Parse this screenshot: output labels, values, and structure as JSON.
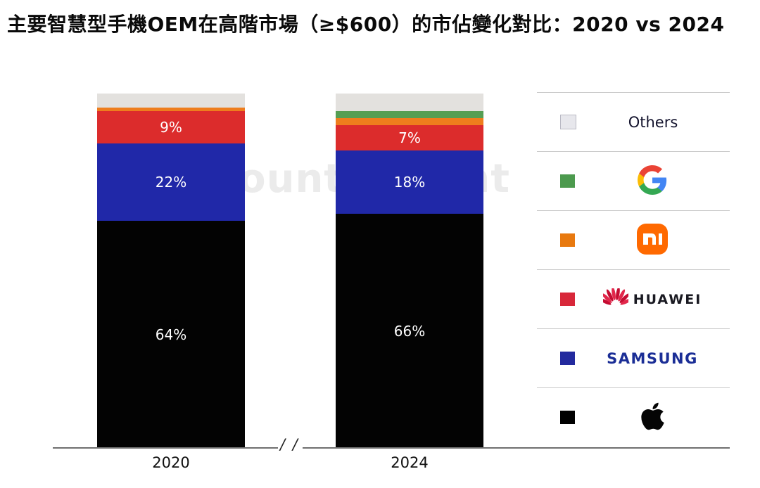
{
  "title": "主要智慧型手機OEM在高階市場（≥$600）的市佔變化對比：2020 vs 2024",
  "watermark": "Counterpoint",
  "axis_break": "/ /",
  "chart_data": {
    "type": "bar",
    "stacked": true,
    "unit": "%",
    "title": "主要智慧型手機OEM在高階市場（≥$600）的市佔變化對比：2020 vs 2024",
    "categories": [
      "2020",
      "2024"
    ],
    "series": [
      {
        "name": "Apple",
        "color": "#030303",
        "values": [
          64,
          66
        ],
        "labels": [
          "64%",
          "66%"
        ]
      },
      {
        "name": "Samsung",
        "color": "#2028a8",
        "values": [
          22,
          18
        ],
        "labels": [
          "22%",
          "18%"
        ]
      },
      {
        "name": "Huawei",
        "color": "#dc2c2c",
        "values": [
          9,
          7
        ],
        "labels": [
          "9%",
          "7%"
        ]
      },
      {
        "name": "Xiaomi",
        "color": "#ee7d1d",
        "values": [
          1,
          2
        ],
        "labels": [
          "",
          ""
        ]
      },
      {
        "name": "Google",
        "color": "#559e53",
        "values": [
          0,
          2
        ],
        "labels": [
          "",
          ""
        ]
      },
      {
        "name": "Others",
        "color": "#e3e1de",
        "values": [
          4,
          5
        ],
        "labels": [
          "",
          ""
        ]
      }
    ],
    "ylim": [
      0,
      100
    ],
    "grid": false,
    "legend_position": "right"
  },
  "legend": {
    "items": [
      {
        "label": "Others",
        "swatch": "#e7e7ec"
      },
      {
        "label": "Google",
        "swatch": "#4c9a4e"
      },
      {
        "label": "Xiaomi",
        "swatch": "#e8790f"
      },
      {
        "label": "Huawei",
        "swatch": "#d8283a",
        "logo_text": "HUAWEI"
      },
      {
        "label": "Samsung",
        "swatch": "#232a9e",
        "logo_text": "SAMSUNG"
      },
      {
        "label": "Apple",
        "swatch": "#000000"
      }
    ]
  }
}
